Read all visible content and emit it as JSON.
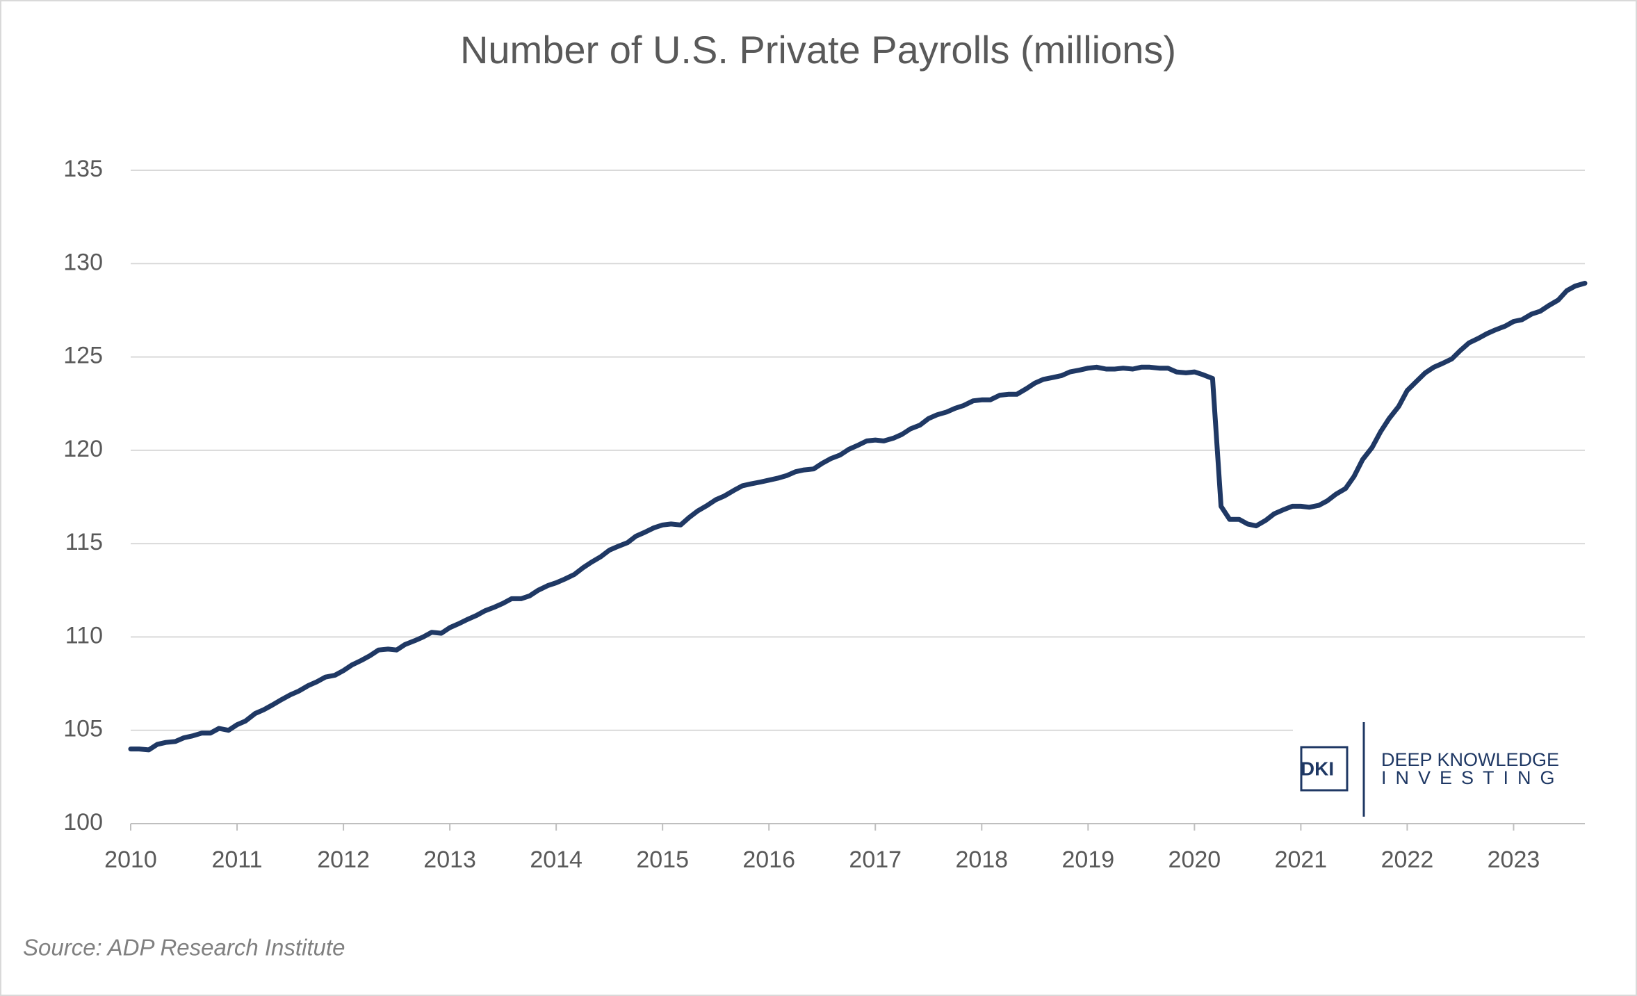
{
  "chart_data": {
    "type": "line",
    "title": "Number of U.S. Private Payrolls (millions)",
    "color": "#1f3864",
    "grid": true,
    "xlim": [
      2010,
      2023.67
    ],
    "xticks": [
      2010,
      2011,
      2012,
      2013,
      2014,
      2015,
      2016,
      2017,
      2018,
      2019,
      2020,
      2021,
      2022,
      2023
    ],
    "ylim": [
      100,
      135
    ],
    "yticks": [
      100,
      105,
      110,
      115,
      120,
      125,
      130,
      135
    ],
    "x": [
      2010,
      2010.08,
      2010.17,
      2010.25,
      2010.33,
      2010.42,
      2010.5,
      2010.58,
      2010.67,
      2010.75,
      2010.83,
      2010.92,
      2011,
      2011.08,
      2011.17,
      2011.25,
      2011.33,
      2011.42,
      2011.5,
      2011.58,
      2011.67,
      2011.75,
      2011.83,
      2011.92,
      2012,
      2012.08,
      2012.17,
      2012.25,
      2012.33,
      2012.42,
      2012.5,
      2012.58,
      2012.67,
      2012.75,
      2012.83,
      2012.92,
      2013,
      2013.08,
      2013.17,
      2013.25,
      2013.33,
      2013.42,
      2013.5,
      2013.58,
      2013.67,
      2013.75,
      2013.83,
      2013.92,
      2014,
      2014.08,
      2014.17,
      2014.25,
      2014.33,
      2014.42,
      2014.5,
      2014.58,
      2014.67,
      2014.75,
      2014.83,
      2014.92,
      2015,
      2015.08,
      2015.17,
      2015.25,
      2015.33,
      2015.42,
      2015.5,
      2015.58,
      2015.67,
      2015.75,
      2015.83,
      2015.92,
      2016,
      2016.08,
      2016.17,
      2016.25,
      2016.33,
      2016.42,
      2016.5,
      2016.58,
      2016.67,
      2016.75,
      2016.83,
      2016.92,
      2017,
      2017.08,
      2017.17,
      2017.25,
      2017.33,
      2017.42,
      2017.5,
      2017.58,
      2017.67,
      2017.75,
      2017.83,
      2017.92,
      2018,
      2018.08,
      2018.17,
      2018.25,
      2018.33,
      2018.42,
      2018.5,
      2018.58,
      2018.67,
      2018.75,
      2018.83,
      2018.92,
      2019,
      2019.08,
      2019.17,
      2019.25,
      2019.33,
      2019.42,
      2019.5,
      2019.58,
      2019.67,
      2019.75,
      2019.83,
      2019.92,
      2020,
      2020.08,
      2020.17,
      2020.25,
      2020.33,
      2020.42,
      2020.5,
      2020.58,
      2020.67,
      2020.75,
      2020.83,
      2020.92,
      2021,
      2021.08,
      2021.17,
      2021.25,
      2021.33,
      2021.42,
      2021.5,
      2021.58,
      2021.67,
      2021.75,
      2021.83,
      2021.92,
      2022,
      2022.08,
      2022.17,
      2022.25,
      2022.33,
      2022.42,
      2022.5,
      2022.58,
      2022.67,
      2022.75,
      2022.83,
      2022.92,
      2023,
      2023.08,
      2023.17,
      2023.25,
      2023.33,
      2023.42,
      2023.5,
      2023.58,
      2023.67
    ],
    "values": [
      104.0,
      104.0,
      103.95,
      104.25,
      104.35,
      104.4,
      104.6,
      104.7,
      104.85,
      104.85,
      105.1,
      105.0,
      105.3,
      105.5,
      105.9,
      106.1,
      106.35,
      106.65,
      106.9,
      107.1,
      107.4,
      107.6,
      107.85,
      107.95,
      108.2,
      108.5,
      108.75,
      109.0,
      109.3,
      109.35,
      109.3,
      109.6,
      109.8,
      110.0,
      110.25,
      110.2,
      110.5,
      110.7,
      110.95,
      111.15,
      111.4,
      111.6,
      111.8,
      112.05,
      112.05,
      112.2,
      112.5,
      112.75,
      112.9,
      113.1,
      113.35,
      113.7,
      114.0,
      114.3,
      114.65,
      114.85,
      115.05,
      115.4,
      115.6,
      115.85,
      116.0,
      116.05,
      116.0,
      116.4,
      116.75,
      117.05,
      117.35,
      117.55,
      117.85,
      118.1,
      118.2,
      118.3,
      118.4,
      118.5,
      118.65,
      118.85,
      118.95,
      119.0,
      119.3,
      119.55,
      119.75,
      120.05,
      120.25,
      120.5,
      120.55,
      120.5,
      120.65,
      120.85,
      121.15,
      121.35,
      121.7,
      121.9,
      122.05,
      122.25,
      122.4,
      122.65,
      122.7,
      122.7,
      122.95,
      123.0,
      123.0,
      123.3,
      123.6,
      123.8,
      123.9,
      124.0,
      124.2,
      124.3,
      124.4,
      124.45,
      124.35,
      124.35,
      124.4,
      124.35,
      124.45,
      124.45,
      124.4,
      124.4,
      124.2,
      124.15,
      124.2,
      124.05,
      123.85,
      117.0,
      116.3,
      116.3,
      116.05,
      115.95,
      116.25,
      116.6,
      116.8,
      117.0,
      117.0,
      116.95,
      117.05,
      117.3,
      117.65,
      117.95,
      118.6,
      119.5,
      120.15,
      121.0,
      121.7,
      122.35,
      123.2,
      123.65,
      124.15,
      124.45,
      124.65,
      124.9,
      125.35,
      125.75,
      126.0,
      126.25,
      126.45,
      126.65,
      126.9,
      127.0,
      127.3,
      127.45,
      127.75,
      128.05,
      128.55,
      128.8,
      128.95
    ]
  },
  "source": "Source: ADP Research Institute",
  "logo": {
    "mark": "DKI",
    "line1": "DEEP KNOWLEDGE",
    "line2": "INVESTING"
  }
}
